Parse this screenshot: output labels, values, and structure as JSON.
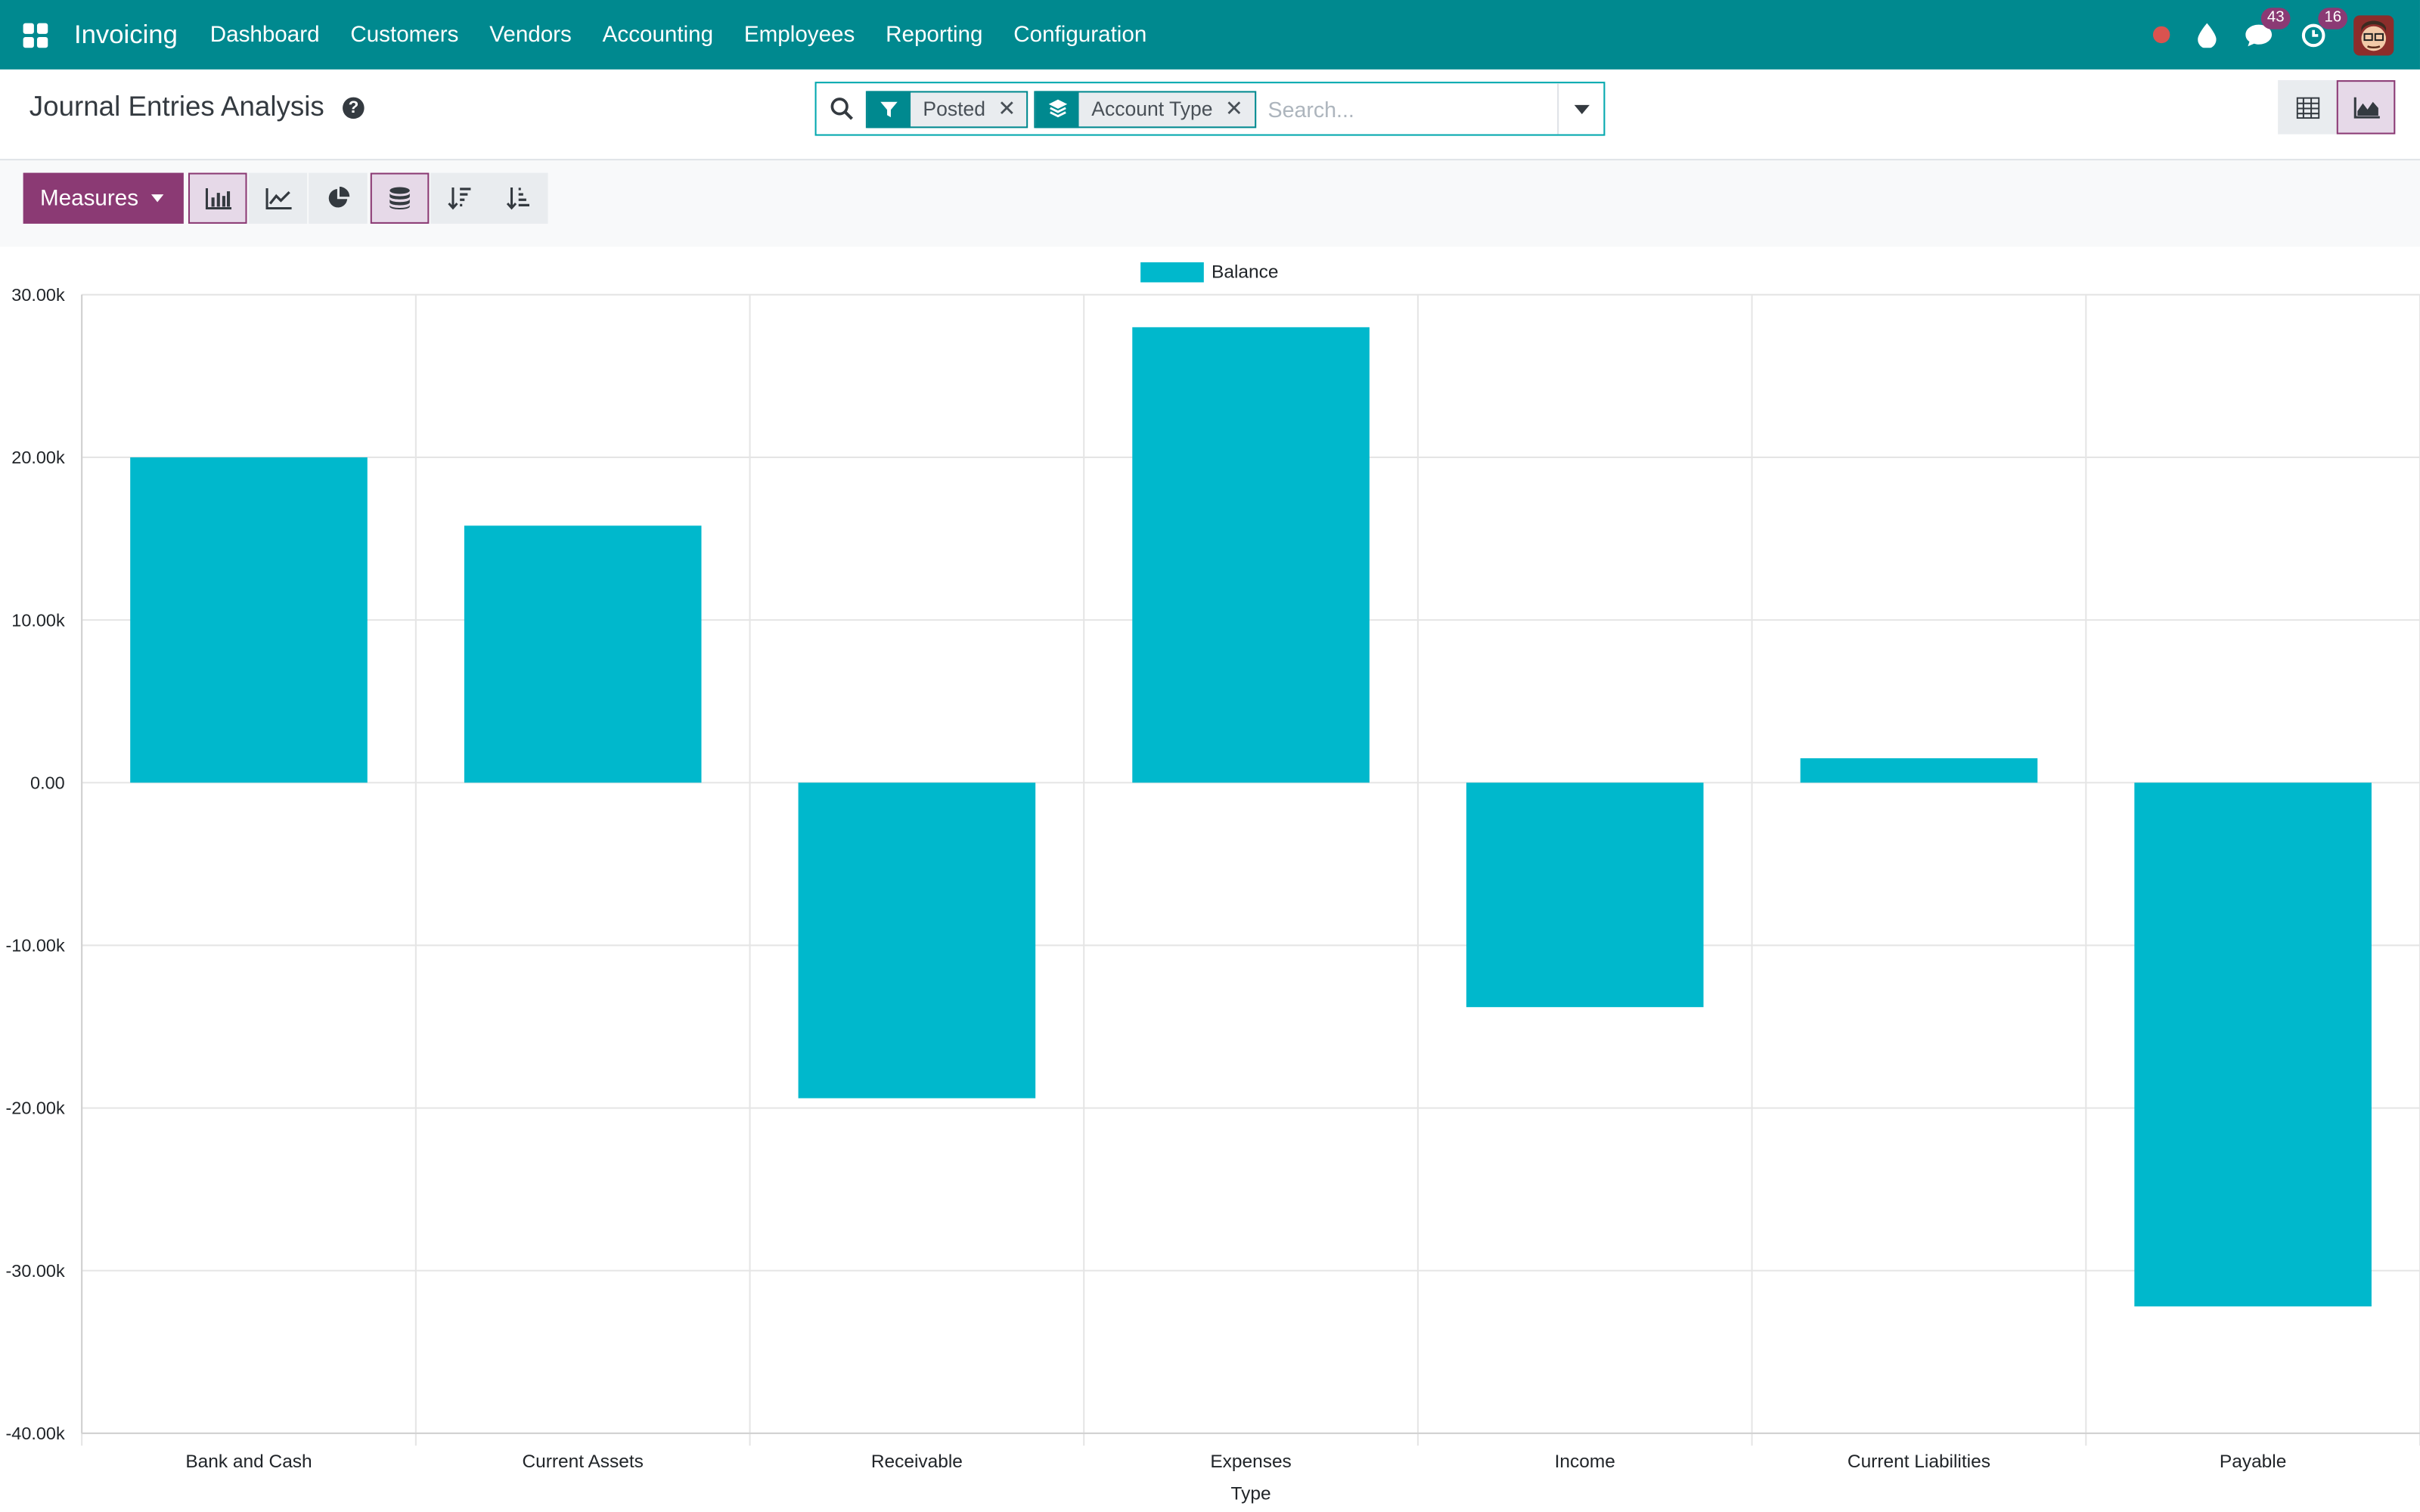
{
  "navbar": {
    "app_name": "Invoicing",
    "menu": [
      "Dashboard",
      "Customers",
      "Vendors",
      "Accounting",
      "Employees",
      "Reporting",
      "Configuration"
    ],
    "messages_count": "43",
    "activities_count": "16"
  },
  "control_panel": {
    "title": "Journal Entries Analysis",
    "facets": [
      {
        "label": "Posted",
        "icon": "filter-icon"
      },
      {
        "label": "Account Type",
        "icon": "group-by-icon"
      }
    ],
    "search_placeholder": "Search...",
    "views": [
      "pivot-view",
      "graph-view"
    ],
    "active_view": "graph-view"
  },
  "graph_toolbar": {
    "measures_label": "Measures",
    "modes": [
      "bar-chart",
      "line-chart",
      "pie-chart"
    ],
    "active_mode": "bar-chart",
    "stacked": true
  },
  "colors": {
    "navbar": "#00898f",
    "accent": "#8b3a74",
    "bar": "#00b8cc"
  },
  "chart_data": {
    "type": "bar",
    "categories": [
      "Bank and Cash",
      "Current Assets",
      "Receivable",
      "Expenses",
      "Income",
      "Current Liabilities",
      "Payable"
    ],
    "series": [
      {
        "name": "Balance",
        "values": [
          20000,
          15800,
          -19400,
          28000,
          -13800,
          1500,
          -32200
        ]
      }
    ],
    "xlabel": "Type",
    "ylabel": "",
    "ylim": [
      -40000,
      30000
    ],
    "yticks": [
      "30.00k",
      "20.00k",
      "10.00k",
      "0.00",
      "-10.00k",
      "-20.00k",
      "-30.00k",
      "-40.00k"
    ],
    "grid": true,
    "legend": "top-center"
  }
}
